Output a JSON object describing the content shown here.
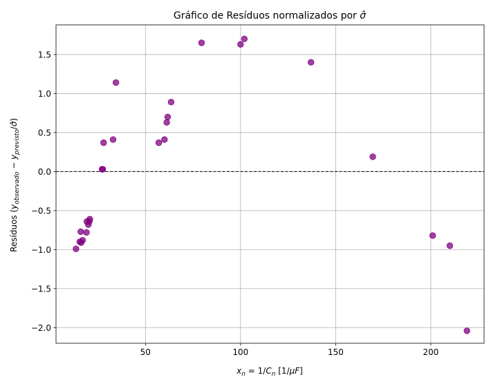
{
  "chart_data": {
    "type": "scatter",
    "title": "Gráfico de Resíduos normalizados por σ̂",
    "xlabel": "x_n = 1/C_n [1/μF]",
    "ylabel": "Resíduos (y_observado − y_previsto/σ̂)",
    "xlim": [
      3,
      228
    ],
    "ylim": [
      -2.2,
      1.88
    ],
    "xticks": [
      50,
      100,
      150,
      200
    ],
    "yticks": [
      -2.0,
      -1.5,
      -1.0,
      -0.5,
      0.0,
      0.5,
      1.0,
      1.5
    ],
    "xtick_labels": [
      "50",
      "100",
      "150",
      "200"
    ],
    "ytick_labels": [
      "−2.0",
      "−1.5",
      "−1.0",
      "−0.5",
      "0.0",
      "0.5",
      "1.0",
      "1.5"
    ],
    "grid": true,
    "reference_line": {
      "y": 0.0,
      "style": "dashed",
      "color": "#000000"
    },
    "marker_color": "#800080",
    "points": [
      {
        "x": 13.5,
        "y": -0.99
      },
      {
        "x": 15.5,
        "y": -0.9
      },
      {
        "x": 16.0,
        "y": -0.77
      },
      {
        "x": 16.2,
        "y": -0.91
      },
      {
        "x": 17.0,
        "y": -0.88
      },
      {
        "x": 19.0,
        "y": -0.78
      },
      {
        "x": 19.2,
        "y": -0.64
      },
      {
        "x": 20.0,
        "y": -0.68
      },
      {
        "x": 20.5,
        "y": -0.64
      },
      {
        "x": 20.8,
        "y": -0.61
      },
      {
        "x": 27.2,
        "y": 0.03
      },
      {
        "x": 27.6,
        "y": 0.03
      },
      {
        "x": 28.0,
        "y": 0.37
      },
      {
        "x": 33.0,
        "y": 0.41
      },
      {
        "x": 34.5,
        "y": 1.14
      },
      {
        "x": 57.0,
        "y": 0.37
      },
      {
        "x": 60.0,
        "y": 0.41
      },
      {
        "x": 61.2,
        "y": 0.63
      },
      {
        "x": 61.7,
        "y": 0.7
      },
      {
        "x": 63.5,
        "y": 0.89
      },
      {
        "x": 79.5,
        "y": 1.65
      },
      {
        "x": 100.0,
        "y": 1.63
      },
      {
        "x": 102.0,
        "y": 1.7
      },
      {
        "x": 137.0,
        "y": 1.4
      },
      {
        "x": 169.5,
        "y": 0.19
      },
      {
        "x": 201.0,
        "y": -0.82
      },
      {
        "x": 210.0,
        "y": -0.95
      },
      {
        "x": 219.0,
        "y": -2.04
      }
    ]
  }
}
